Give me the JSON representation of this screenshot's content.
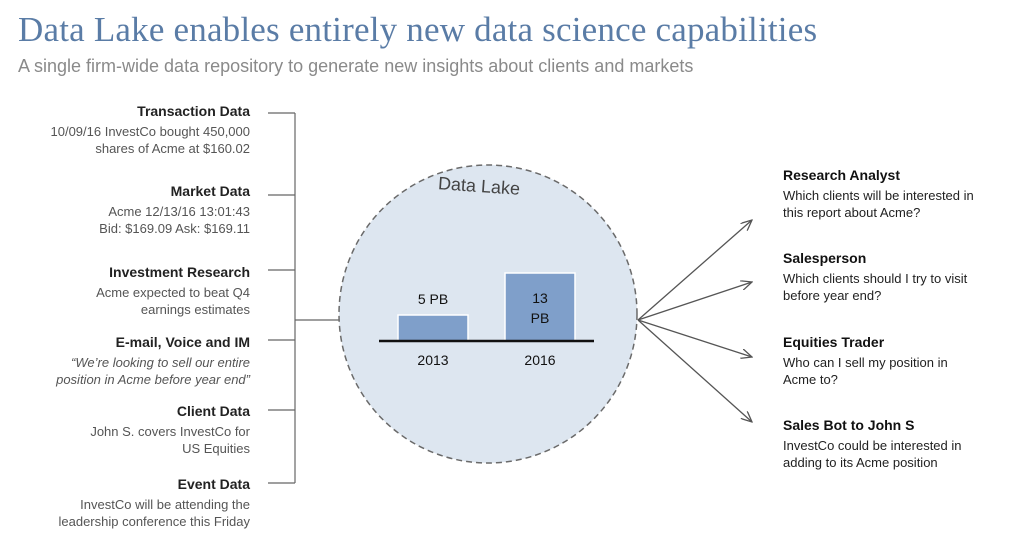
{
  "title": "Data Lake enables entirely new data science capabilities",
  "subtitle": "A single firm-wide data repository to generate new insights about clients and markets",
  "sources": [
    {
      "heading": "Transaction Data",
      "body": "10/09/16 InvestCo bought 450,000\nshares of Acme at $160.02",
      "italic": false
    },
    {
      "heading": "Market Data",
      "body": "Acme 12/13/16 13:01:43\nBid: $169.09 Ask: $169.11",
      "italic": false
    },
    {
      "heading": "Investment Research",
      "body": "Acme expected to beat Q4\nearnings estimates",
      "italic": false
    },
    {
      "heading": "E-mail, Voice and IM",
      "body": "“We’re looking to sell our entire\nposition in Acme before year end”",
      "italic": true
    },
    {
      "heading": "Client Data",
      "body": "John S. covers InvestCo for\nUS Equities",
      "italic": false
    },
    {
      "heading": "Event Data",
      "body": "InvestCo will be attending the\nleadership conference this Friday",
      "italic": false
    }
  ],
  "lake": {
    "label": "Data Lake",
    "bars": [
      {
        "year": "2013",
        "label": "5 PB",
        "value": 5
      },
      {
        "year": "2016",
        "label": "13\nPB",
        "value": 13
      }
    ],
    "unit": "PB"
  },
  "personas": [
    {
      "heading": "Research Analyst",
      "body": "Which clients will be interested in\nthis report about Acme?"
    },
    {
      "heading": "Salesperson",
      "body": "Which clients should I try to visit\nbefore year end?"
    },
    {
      "heading": "Equities Trader",
      "body": "Who can I sell my position in\nAcme to?"
    },
    {
      "heading": "Sales Bot to John S",
      "body": "InvestCo could be interested in\nadding to its Acme position"
    }
  ],
  "colors": {
    "title": "#5a7ca6",
    "circle_fill": "#dde6f0",
    "bar_fill": "#7f9fca"
  }
}
